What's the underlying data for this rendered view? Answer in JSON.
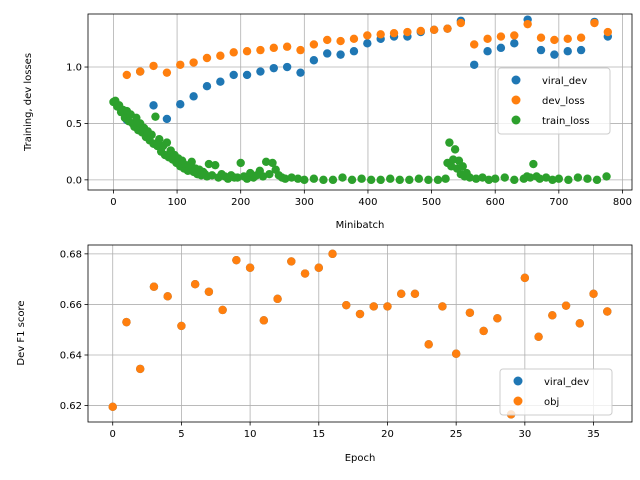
{
  "chart_data": [
    {
      "type": "scatter",
      "xlabel": "Minibatch",
      "ylabel": "Training, dev losses",
      "xlim": [
        -40,
        815
      ],
      "ylim": [
        -0.09,
        1.47
      ],
      "xticks": [
        0,
        100,
        200,
        300,
        400,
        500,
        600,
        700,
        800
      ],
      "yticks": [
        0.0,
        0.5,
        1.0
      ],
      "grid": true,
      "legend_position": "center-right",
      "series": [
        {
          "name": "viral_dev",
          "color": "#1f77b4",
          "x": [
            21,
            42,
            63,
            84,
            105,
            126,
            147,
            168,
            189,
            210,
            231,
            252,
            273,
            294,
            315,
            336,
            357,
            378,
            399,
            420,
            441,
            462,
            483,
            504,
            525,
            546,
            567,
            588,
            609,
            630,
            651,
            672,
            693,
            714,
            735,
            756,
            777
          ],
          "y": [
            0.53,
            0.96,
            0.66,
            0.54,
            0.67,
            0.74,
            0.83,
            0.87,
            0.93,
            0.93,
            0.96,
            0.99,
            1.0,
            0.95,
            1.06,
            1.12,
            1.11,
            1.14,
            1.21,
            1.25,
            1.27,
            1.27,
            1.31,
            1.33,
            1.34,
            1.41,
            1.02,
            1.14,
            1.17,
            1.21,
            1.42,
            1.15,
            1.11,
            1.14,
            1.15,
            1.4,
            1.27
          ]
        },
        {
          "name": "dev_loss",
          "color": "#ff7f0e",
          "x": [
            21,
            42,
            63,
            84,
            105,
            126,
            147,
            168,
            189,
            210,
            231,
            252,
            273,
            294,
            315,
            336,
            357,
            378,
            399,
            420,
            441,
            462,
            483,
            504,
            525,
            546,
            567,
            588,
            609,
            630,
            651,
            672,
            693,
            714,
            735,
            756,
            777
          ],
          "y": [
            0.93,
            0.96,
            1.01,
            0.95,
            1.02,
            1.04,
            1.08,
            1.1,
            1.13,
            1.14,
            1.15,
            1.17,
            1.18,
            1.15,
            1.2,
            1.24,
            1.23,
            1.25,
            1.28,
            1.29,
            1.3,
            1.31,
            1.32,
            1.33,
            1.34,
            1.39,
            1.2,
            1.25,
            1.27,
            1.28,
            1.38,
            1.26,
            1.24,
            1.25,
            1.26,
            1.39,
            1.31
          ]
        },
        {
          "name": "train_loss",
          "color": "#2ca02c",
          "x": [
            0,
            3,
            6,
            9,
            12,
            15,
            18,
            21,
            24,
            27,
            30,
            33,
            36,
            39,
            42,
            45,
            48,
            51,
            54,
            57,
            60,
            63,
            66,
            69,
            72,
            75,
            78,
            81,
            84,
            87,
            90,
            93,
            96,
            99,
            102,
            105,
            108,
            111,
            114,
            117,
            120,
            123,
            126,
            129,
            132,
            135,
            138,
            141,
            144,
            147,
            150,
            155,
            160,
            165,
            170,
            175,
            180,
            185,
            190,
            195,
            200,
            205,
            210,
            215,
            220,
            225,
            230,
            235,
            240,
            245,
            250,
            255,
            260,
            265,
            270,
            280,
            290,
            300,
            315,
            330,
            345,
            360,
            375,
            390,
            405,
            420,
            435,
            450,
            465,
            480,
            495,
            510,
            522,
            525,
            528,
            531,
            534,
            537,
            540,
            543,
            546,
            549,
            552,
            555,
            560,
            570,
            580,
            590,
            600,
            615,
            630,
            645,
            650,
            655,
            660,
            665,
            670,
            680,
            690,
            700,
            715,
            730,
            745,
            760,
            775
          ],
          "y": [
            0.69,
            0.7,
            0.65,
            0.66,
            0.6,
            0.62,
            0.55,
            0.61,
            0.52,
            0.58,
            0.5,
            0.47,
            0.55,
            0.44,
            0.5,
            0.42,
            0.46,
            0.38,
            0.43,
            0.35,
            0.4,
            0.32,
            0.56,
            0.3,
            0.36,
            0.25,
            0.3,
            0.22,
            0.33,
            0.2,
            0.26,
            0.18,
            0.22,
            0.15,
            0.19,
            0.12,
            0.17,
            0.1,
            0.13,
            0.08,
            0.12,
            0.16,
            0.07,
            0.1,
            0.05,
            0.09,
            0.04,
            0.07,
            0.05,
            0.03,
            0.14,
            0.04,
            0.13,
            0.02,
            0.05,
            0.03,
            0.01,
            0.04,
            0.02,
            0.02,
            0.15,
            0.03,
            0.01,
            0.06,
            0.02,
            0.04,
            0.08,
            0.03,
            0.16,
            0.05,
            0.15,
            0.09,
            0.04,
            0.02,
            0.01,
            0.02,
            0.01,
            0.0,
            0.01,
            0.0,
            0.0,
            0.02,
            0.0,
            0.01,
            0.0,
            0.0,
            0.01,
            0.0,
            0.0,
            0.01,
            0.0,
            0.0,
            0.01,
            0.15,
            0.33,
            0.12,
            0.18,
            0.27,
            0.1,
            0.17,
            0.05,
            0.12,
            0.03,
            0.06,
            0.02,
            0.01,
            0.02,
            0.0,
            0.01,
            0.02,
            0.0,
            0.01,
            0.03,
            0.02,
            0.14,
            0.03,
            0.01,
            0.02,
            0.0,
            0.01,
            0.0,
            0.02,
            0.01,
            0.0,
            0.03
          ]
        }
      ]
    },
    {
      "type": "scatter",
      "xlabel": "Epoch",
      "ylabel": "Dev F1 score",
      "xlim": [
        -1.8,
        37.8
      ],
      "ylim": [
        0.6135,
        0.6835
      ],
      "xticks": [
        0,
        5,
        10,
        15,
        20,
        25,
        30,
        35
      ],
      "yticks": [
        0.62,
        0.64,
        0.66,
        0.68
      ],
      "grid": true,
      "legend_position": "lower-right",
      "series": [
        {
          "name": "viral_dev",
          "color": "#1f77b4",
          "x": [
            0,
            1,
            2,
            3,
            4,
            5,
            6,
            7,
            8,
            9,
            10,
            11,
            12,
            13,
            14,
            15,
            16,
            17,
            18,
            19,
            20,
            21,
            22,
            23,
            24,
            25,
            26,
            27,
            28,
            29,
            30,
            31,
            32,
            33,
            34,
            35,
            36
          ],
          "y": [
            0.6195,
            0.653,
            0.6345,
            0.667,
            0.6632,
            0.6515,
            0.668,
            0.665,
            0.6578,
            0.6775,
            0.6745,
            0.6537,
            0.6622,
            0.677,
            0.6722,
            0.6745,
            0.68,
            0.6597,
            0.6562,
            0.6592,
            0.6592,
            0.6642,
            0.6642,
            0.6442,
            0.6592,
            0.6405,
            0.6567,
            0.6495,
            0.6545,
            0.6165,
            0.6705,
            0.6472,
            0.6557,
            0.6595,
            0.6525,
            0.6642,
            0.6572
          ]
        },
        {
          "name": "obj",
          "color": "#ff7f0e",
          "x": [
            0,
            1,
            2,
            3,
            4,
            5,
            6,
            7,
            8,
            9,
            10,
            11,
            12,
            13,
            14,
            15,
            16,
            17,
            18,
            19,
            20,
            21,
            22,
            23,
            24,
            25,
            26,
            27,
            28,
            29,
            30,
            31,
            32,
            33,
            34,
            35,
            36
          ],
          "y": [
            0.6195,
            0.653,
            0.6345,
            0.667,
            0.6632,
            0.6515,
            0.668,
            0.665,
            0.6578,
            0.6775,
            0.6745,
            0.6537,
            0.6622,
            0.677,
            0.6722,
            0.6745,
            0.68,
            0.6597,
            0.6562,
            0.6592,
            0.6592,
            0.6642,
            0.6642,
            0.6442,
            0.6592,
            0.6405,
            0.6567,
            0.6495,
            0.6545,
            0.6165,
            0.6705,
            0.6472,
            0.6557,
            0.6595,
            0.6525,
            0.6642,
            0.6572
          ]
        }
      ]
    }
  ]
}
